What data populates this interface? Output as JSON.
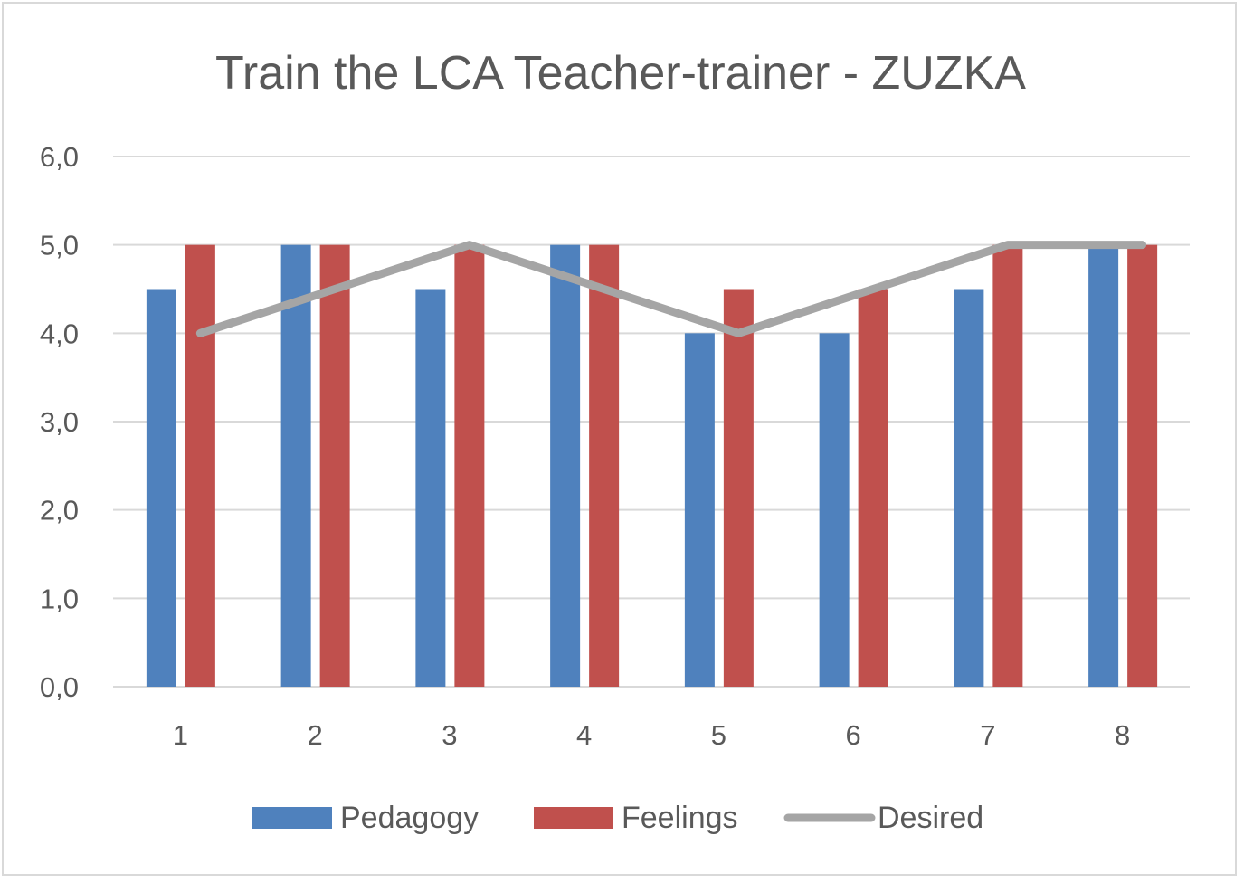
{
  "chart_data": {
    "type": "bar",
    "title": "Train the LCA Teacher-trainer - ZUZKA",
    "categories": [
      "1",
      "2",
      "3",
      "4",
      "5",
      "6",
      "7",
      "8"
    ],
    "ylim": [
      0,
      6
    ],
    "yticks": [
      "0,0",
      "1,0",
      "2,0",
      "3,0",
      "4,0",
      "5,0",
      "6,0"
    ],
    "ytick_values": [
      0,
      1,
      2,
      3,
      4,
      5,
      6
    ],
    "grid": true,
    "legend_position": "bottom",
    "series": [
      {
        "name": "Pedagogy",
        "kind": "bar",
        "color": "#4f81bd",
        "values": [
          4.5,
          5,
          4.5,
          5,
          4,
          4,
          4.5,
          5
        ]
      },
      {
        "name": "Feelings",
        "kind": "bar",
        "color": "#c0504d",
        "values": [
          5,
          5,
          5,
          5,
          4.5,
          4.5,
          5,
          5
        ]
      },
      {
        "name": "Desired",
        "kind": "line",
        "color": "#a5a5a5",
        "values": [
          4,
          4.5,
          5,
          4.5,
          4,
          4.5,
          5,
          5
        ]
      }
    ]
  }
}
